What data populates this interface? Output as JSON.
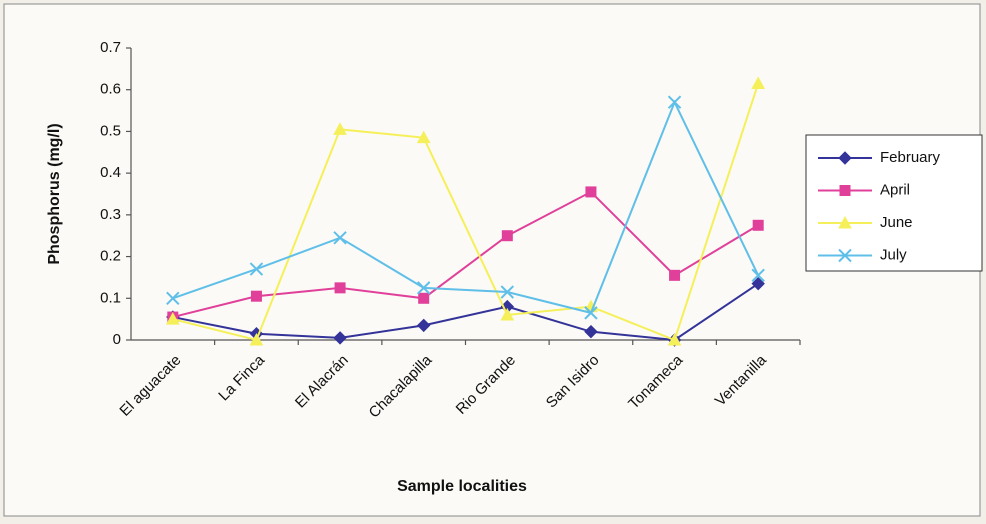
{
  "chart_data": {
    "type": "line",
    "ylabel": "Phosphorus (mg/l)",
    "xlabel": "Sample localities",
    "categories": [
      "El aguacate",
      "La Finca",
      "El Alacrán",
      "Chacalapilla",
      "Rio Grande",
      "San Isidro",
      "Tonameca",
      "Ventanilla"
    ],
    "series": [
      {
        "name": "February",
        "color": "#333399",
        "marker": "diamond",
        "values": [
          0.055,
          0.015,
          0.005,
          0.035,
          0.08,
          0.02,
          0,
          0.135
        ]
      },
      {
        "name": "April",
        "color": "#e0409a",
        "marker": "square",
        "values": [
          0.055,
          0.105,
          0.125,
          0.1,
          0.25,
          0.355,
          0.155,
          0.275
        ]
      },
      {
        "name": "June",
        "color": "#f5f05a",
        "marker": "triangle",
        "values": [
          0.05,
          0,
          0.505,
          0.485,
          0.06,
          0.08,
          0,
          0.615
        ]
      },
      {
        "name": "July",
        "color": "#5fbfe8",
        "marker": "x",
        "values": [
          0.1,
          0.17,
          0.245,
          0.125,
          0.115,
          0.065,
          0.57,
          0.155
        ]
      }
    ],
    "ylim": [
      0,
      0.7
    ],
    "yticks": [
      0,
      0.1,
      0.2,
      0.3,
      0.4,
      0.5,
      0.6,
      0.7
    ],
    "grid": false,
    "legend": "right"
  }
}
